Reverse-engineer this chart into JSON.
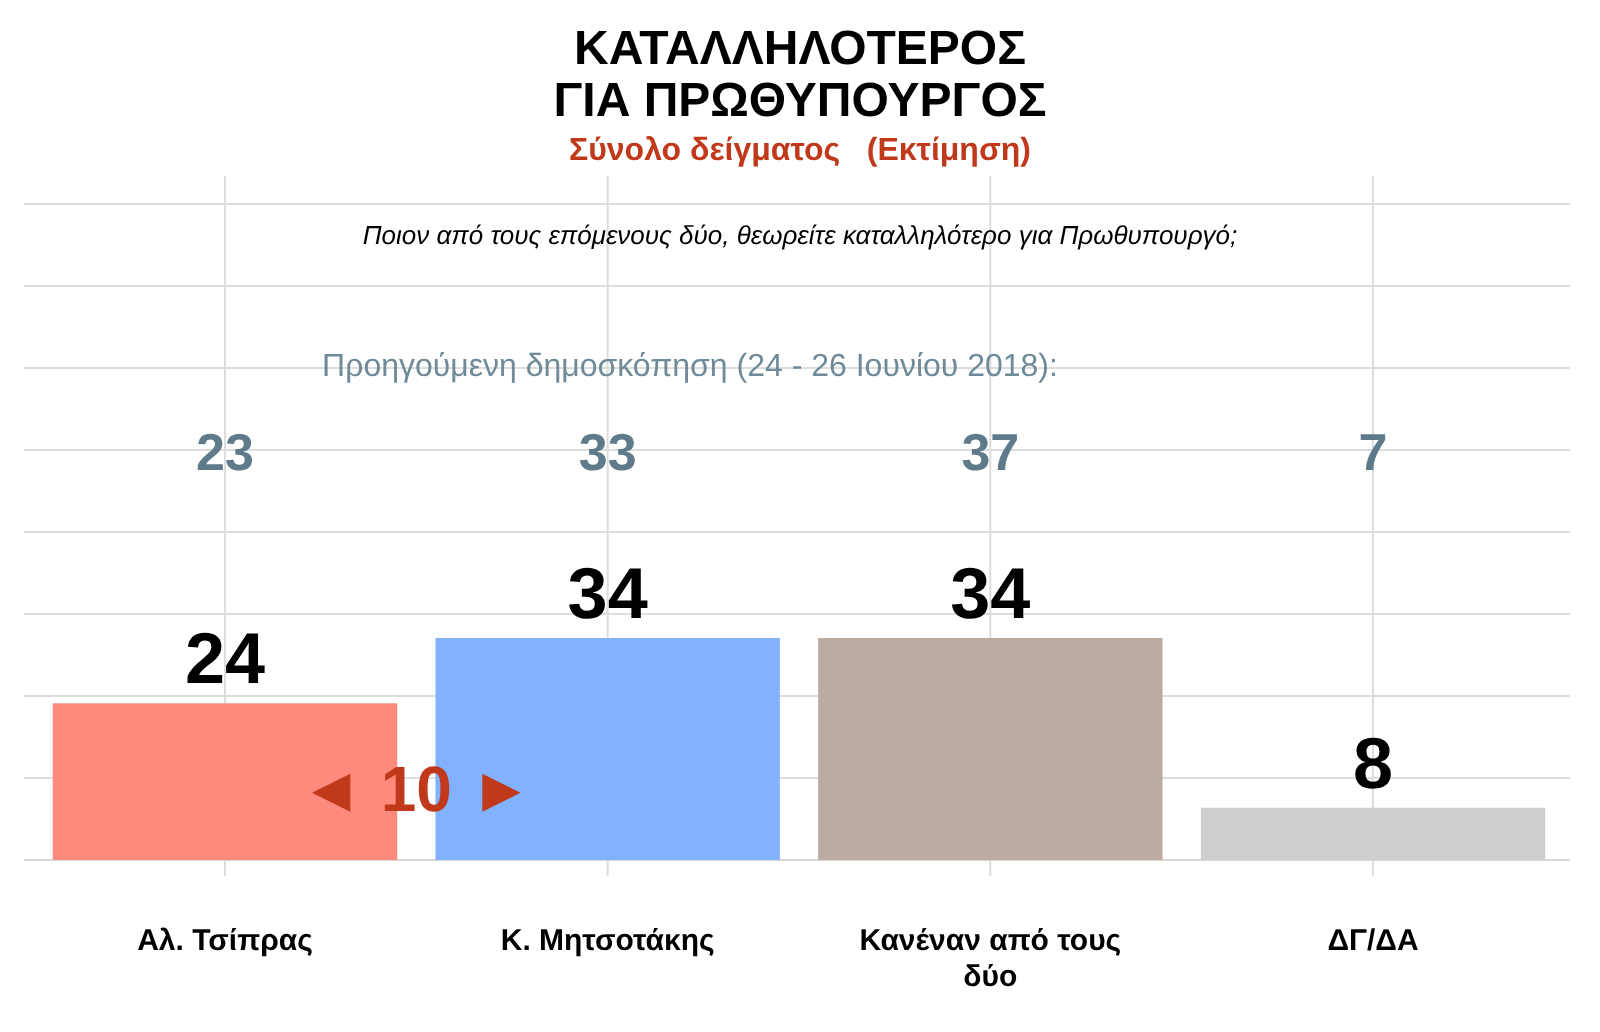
{
  "chart_data": {
    "type": "bar",
    "title": "ΚΑΤΑΛΛΗΛΟΤΕΡΟΣ\nΓΙΑ ΠΡΩΘΥΠΟΥΡΓΟΣ",
    "subtitle": "Σύνολο δείγματος   (Εκτίμηση)",
    "categories": [
      "Αλ. Τσίπρας",
      "Κ. Μητσοτάκης",
      "Κανέναν από τους δύο",
      "ΔΓ/ΔΑ"
    ],
    "values": [
      24,
      34,
      34,
      8
    ],
    "colors": [
      "#fe8a7e",
      "#82b1ff",
      "#bcaba3",
      "#cfcfcf"
    ],
    "data_labels": true,
    "grid": true,
    "annotations": [
      "Ποιον από τους επόμενους δύο, θεωρείτε καταλληλότερο για Πρωθυπουργό;",
      "Προηγούμενη δημοσκόπηση (24 - 26 Ιουνίου 2018):",
      "23",
      "33",
      "37",
      "7",
      "◄ 10 ►"
    ]
  }
}
